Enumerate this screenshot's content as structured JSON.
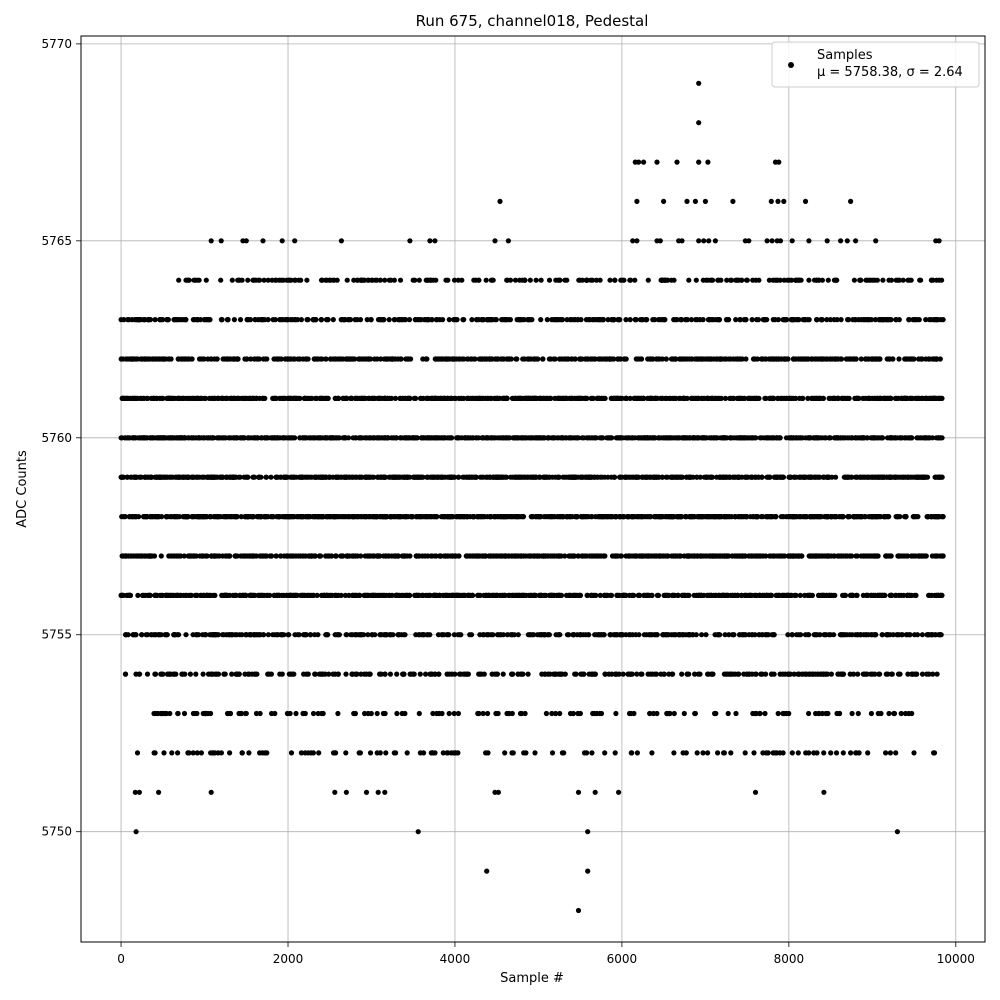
{
  "chart_data": {
    "type": "scatter",
    "title": "Run 675, channel018, Pedestal",
    "xlabel": "Sample #",
    "ylabel": "ADC Counts",
    "xlim": [
      -480,
      10350
    ],
    "ylim": [
      5747.2,
      5770.2
    ],
    "xticks": [
      0,
      2000,
      4000,
      6000,
      8000,
      10000
    ],
    "xtick_labels": [
      "0",
      "2000",
      "4000",
      "6000",
      "8000",
      "10000"
    ],
    "yticks": [
      5750,
      5755,
      5760,
      5765,
      5770
    ],
    "ytick_labels": [
      "5750",
      "5755",
      "5760",
      "5765",
      "5770"
    ],
    "grid": true,
    "legend": {
      "placement": "top-right",
      "label": "Samples",
      "stats": "μ = 5758.38, σ = 2.64"
    },
    "marker_color": "#000000",
    "n_samples": 9900,
    "mean": 5758.38,
    "sigma": 2.64,
    "series": [
      {
        "name": "Samples",
        "dense_levels": [
          {
            "y": 5754,
            "x_range": [
              50,
              9850
            ],
            "count": 300
          },
          {
            "y": 5755,
            "x_range": [
              50,
              9850
            ],
            "count": 420
          },
          {
            "y": 5756,
            "x_range": [
              0,
              9850
            ],
            "count": 650
          },
          {
            "y": 5757,
            "x_range": [
              0,
              9850
            ],
            "count": 700
          },
          {
            "y": 5758,
            "x_range": [
              0,
              9850
            ],
            "count": 800
          },
          {
            "y": 5759,
            "x_range": [
              0,
              9850
            ],
            "count": 800
          },
          {
            "y": 5760,
            "x_range": [
              0,
              9850
            ],
            "count": 800
          },
          {
            "y": 5761,
            "x_range": [
              0,
              9850
            ],
            "count": 700
          },
          {
            "y": 5762,
            "x_range": [
              0,
              9850
            ],
            "count": 600
          },
          {
            "y": 5763,
            "x_range": [
              0,
              9850
            ],
            "count": 400
          },
          {
            "y": 5764,
            "x_range": [
              650,
              9850
            ],
            "count": 230
          },
          {
            "y": 5753,
            "x_range": [
              300,
              9500
            ],
            "count": 150
          },
          {
            "y": 5752,
            "x_range": [
              180,
              9750
            ],
            "count": 120
          }
        ],
        "sparse_points": [
          [
            180,
            5750
          ],
          [
            3560,
            5750
          ],
          [
            5590,
            5750
          ],
          [
            9300,
            5750
          ],
          [
            4380,
            5749
          ],
          [
            5590,
            5749
          ],
          [
            5480,
            5748
          ],
          [
            170,
            5751
          ],
          [
            220,
            5751
          ],
          [
            450,
            5751
          ],
          [
            1080,
            5751
          ],
          [
            2560,
            5751
          ],
          [
            2700,
            5751
          ],
          [
            2940,
            5751
          ],
          [
            3080,
            5751
          ],
          [
            3160,
            5751
          ],
          [
            4480,
            5751
          ],
          [
            4520,
            5751
          ],
          [
            5480,
            5751
          ],
          [
            5680,
            5751
          ],
          [
            5960,
            5751
          ],
          [
            7600,
            5751
          ],
          [
            8420,
            5751
          ],
          [
            1080,
            5765
          ],
          [
            1200,
            5765
          ],
          [
            1460,
            5765
          ],
          [
            1500,
            5765
          ],
          [
            1700,
            5765
          ],
          [
            1930,
            5765
          ],
          [
            2080,
            5765
          ],
          [
            2640,
            5765
          ],
          [
            3460,
            5765
          ],
          [
            3700,
            5765
          ],
          [
            3760,
            5765
          ],
          [
            4480,
            5765
          ],
          [
            4640,
            5765
          ],
          [
            6130,
            5765
          ],
          [
            6180,
            5765
          ],
          [
            6420,
            5765
          ],
          [
            6460,
            5765
          ],
          [
            6680,
            5765
          ],
          [
            6720,
            5765
          ],
          [
            6920,
            5765
          ],
          [
            6980,
            5765
          ],
          [
            7040,
            5765
          ],
          [
            7120,
            5765
          ],
          [
            7480,
            5765
          ],
          [
            7520,
            5765
          ],
          [
            7740,
            5765
          ],
          [
            7800,
            5765
          ],
          [
            7860,
            5765
          ],
          [
            7900,
            5765
          ],
          [
            8040,
            5765
          ],
          [
            8240,
            5765
          ],
          [
            8460,
            5765
          ],
          [
            8620,
            5765
          ],
          [
            8700,
            5765
          ],
          [
            8800,
            5765
          ],
          [
            9040,
            5765
          ],
          [
            9760,
            5765
          ],
          [
            9800,
            5765
          ],
          [
            4540,
            5766
          ],
          [
            6180,
            5766
          ],
          [
            6500,
            5766
          ],
          [
            6780,
            5766
          ],
          [
            6880,
            5766
          ],
          [
            7000,
            5766
          ],
          [
            7330,
            5766
          ],
          [
            7790,
            5766
          ],
          [
            7870,
            5766
          ],
          [
            7940,
            5766
          ],
          [
            8200,
            5766
          ],
          [
            8740,
            5766
          ],
          [
            6160,
            5767
          ],
          [
            6200,
            5767
          ],
          [
            6260,
            5767
          ],
          [
            6420,
            5767
          ],
          [
            6660,
            5767
          ],
          [
            6920,
            5767
          ],
          [
            7030,
            5767
          ],
          [
            7840,
            5767
          ],
          [
            7880,
            5767
          ],
          [
            6920,
            5768
          ],
          [
            6920,
            5769
          ]
        ]
      }
    ]
  }
}
